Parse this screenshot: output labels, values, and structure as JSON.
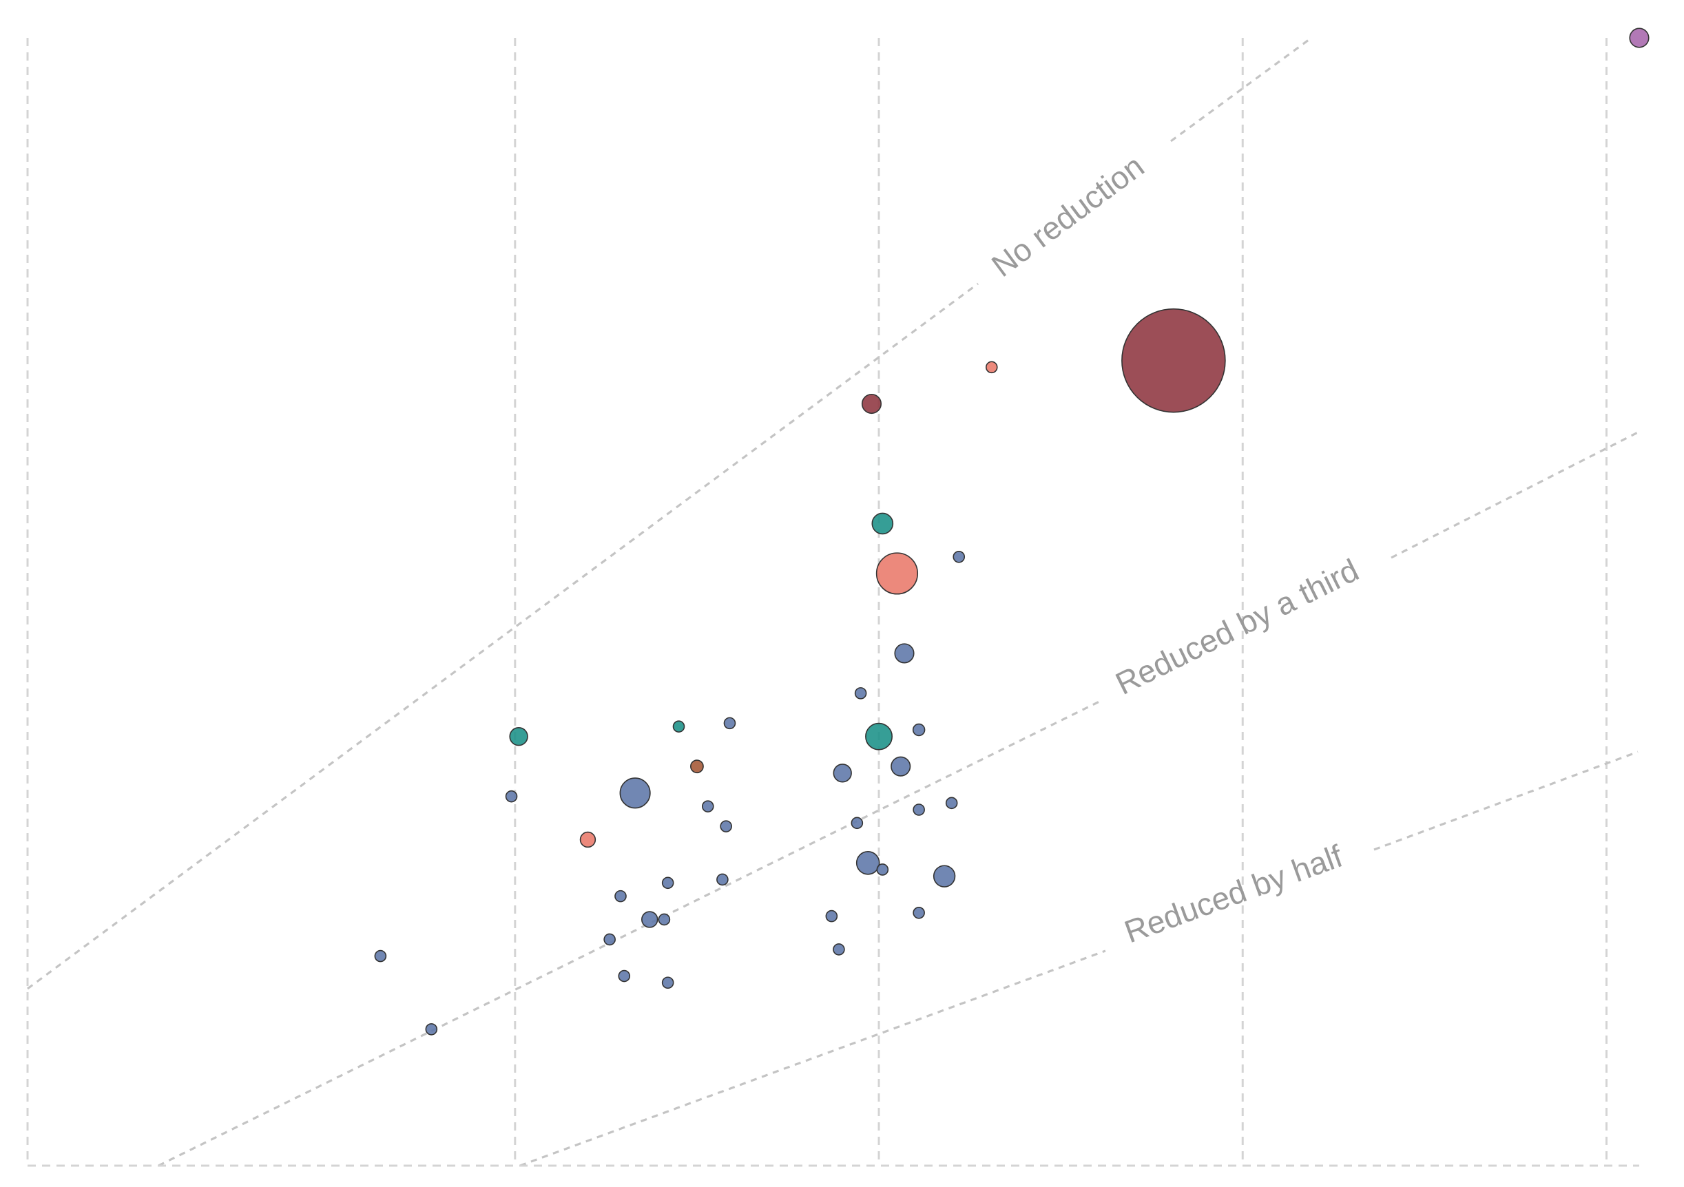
{
  "chart_data": {
    "type": "scatter",
    "title": "",
    "xlabel": "",
    "ylabel": "",
    "x_axis": {
      "scale": "log",
      "range": [
        -0.65,
        3.78
      ],
      "gridlines_at": [
        0.69,
        1.69,
        2.69,
        3.69
      ],
      "tick_labels_visible": false
    },
    "y_axis": {
      "scale": "log",
      "range": [
        -0.18,
        3.21
      ],
      "tick_labels_visible": false
    },
    "grid": "vertical dashed",
    "legend": "none",
    "reference_lines": [
      {
        "label": "No reduction",
        "slope": 1.0
      },
      {
        "label": "Reduced by a third",
        "slope": 0.6667
      },
      {
        "label": "Reduced by half",
        "slope": 0.5
      }
    ],
    "colors": {
      "blue": "#5d76a8",
      "teal": "#1a9187",
      "salmon": "#e9796a",
      "brown": "#a45734",
      "maroon": "#8e3540",
      "purple": "#a766ac"
    },
    "points": [
      {
        "x": 3.78,
        "y": 3.21,
        "size": 32,
        "color": "purple"
      },
      {
        "x": 2.5,
        "y": 2.24,
        "size": 950,
        "color": "maroon"
      },
      {
        "x": 1.67,
        "y": 2.11,
        "size": 32,
        "color": "maroon"
      },
      {
        "x": 2.0,
        "y": 2.22,
        "size": 3,
        "color": "salmon"
      },
      {
        "x": 1.7,
        "y": 1.75,
        "size": 38,
        "color": "teal"
      },
      {
        "x": 1.74,
        "y": 1.6,
        "size": 150,
        "color": "salmon"
      },
      {
        "x": 1.91,
        "y": 1.65,
        "size": 4,
        "color": "blue"
      },
      {
        "x": 1.76,
        "y": 1.36,
        "size": 32,
        "color": "blue"
      },
      {
        "x": 1.64,
        "y": 1.24,
        "size": 2,
        "color": "blue"
      },
      {
        "x": 1.69,
        "y": 1.11,
        "size": 62,
        "color": "teal"
      },
      {
        "x": 1.8,
        "y": 1.13,
        "size": 12,
        "color": "blue"
      },
      {
        "x": 1.75,
        "y": 1.02,
        "size": 32,
        "color": "blue"
      },
      {
        "x": 1.59,
        "y": 1.0,
        "size": 28,
        "color": "blue"
      },
      {
        "x": 1.8,
        "y": 0.89,
        "size": 6,
        "color": "blue"
      },
      {
        "x": 1.89,
        "y": 0.91,
        "size": 6,
        "color": "blue"
      },
      {
        "x": 1.63,
        "y": 0.85,
        "size": 2,
        "color": "blue"
      },
      {
        "x": 1.66,
        "y": 0.73,
        "size": 46,
        "color": "blue"
      },
      {
        "x": 1.7,
        "y": 0.71,
        "size": 2,
        "color": "blue"
      },
      {
        "x": 1.87,
        "y": 0.69,
        "size": 40,
        "color": "blue"
      },
      {
        "x": 1.56,
        "y": 0.57,
        "size": 5,
        "color": "blue"
      },
      {
        "x": 1.8,
        "y": 0.58,
        "size": 2,
        "color": "blue"
      },
      {
        "x": 1.58,
        "y": 0.47,
        "size": 6,
        "color": "blue"
      },
      {
        "x": 0.7,
        "y": 1.11,
        "size": 28,
        "color": "teal"
      },
      {
        "x": 0.68,
        "y": 0.93,
        "size": 5,
        "color": "blue"
      },
      {
        "x": 0.89,
        "y": 0.8,
        "size": 20,
        "color": "salmon"
      },
      {
        "x": 1.02,
        "y": 0.94,
        "size": 80,
        "color": "blue"
      },
      {
        "x": 1.14,
        "y": 1.14,
        "size": 4,
        "color": "teal"
      },
      {
        "x": 1.19,
        "y": 1.02,
        "size": 14,
        "color": "brown"
      },
      {
        "x": 1.28,
        "y": 1.15,
        "size": 3,
        "color": "blue"
      },
      {
        "x": 1.22,
        "y": 0.9,
        "size": 10,
        "color": "blue"
      },
      {
        "x": 1.27,
        "y": 0.84,
        "size": 2,
        "color": "blue"
      },
      {
        "x": 1.26,
        "y": 0.68,
        "size": 6,
        "color": "blue"
      },
      {
        "x": 1.11,
        "y": 0.67,
        "size": 2,
        "color": "blue"
      },
      {
        "x": 0.98,
        "y": 0.63,
        "size": 5,
        "color": "blue"
      },
      {
        "x": 1.06,
        "y": 0.56,
        "size": 22,
        "color": "blue"
      },
      {
        "x": 1.1,
        "y": 0.56,
        "size": 2,
        "color": "blue"
      },
      {
        "x": 0.95,
        "y": 0.5,
        "size": 3,
        "color": "blue"
      },
      {
        "x": 0.99,
        "y": 0.39,
        "size": 5,
        "color": "blue"
      },
      {
        "x": 1.11,
        "y": 0.37,
        "size": 2,
        "color": "blue"
      },
      {
        "x": 0.32,
        "y": 0.45,
        "size": 2,
        "color": "blue"
      },
      {
        "x": 0.46,
        "y": 0.23,
        "size": 2,
        "color": "blue"
      }
    ]
  }
}
